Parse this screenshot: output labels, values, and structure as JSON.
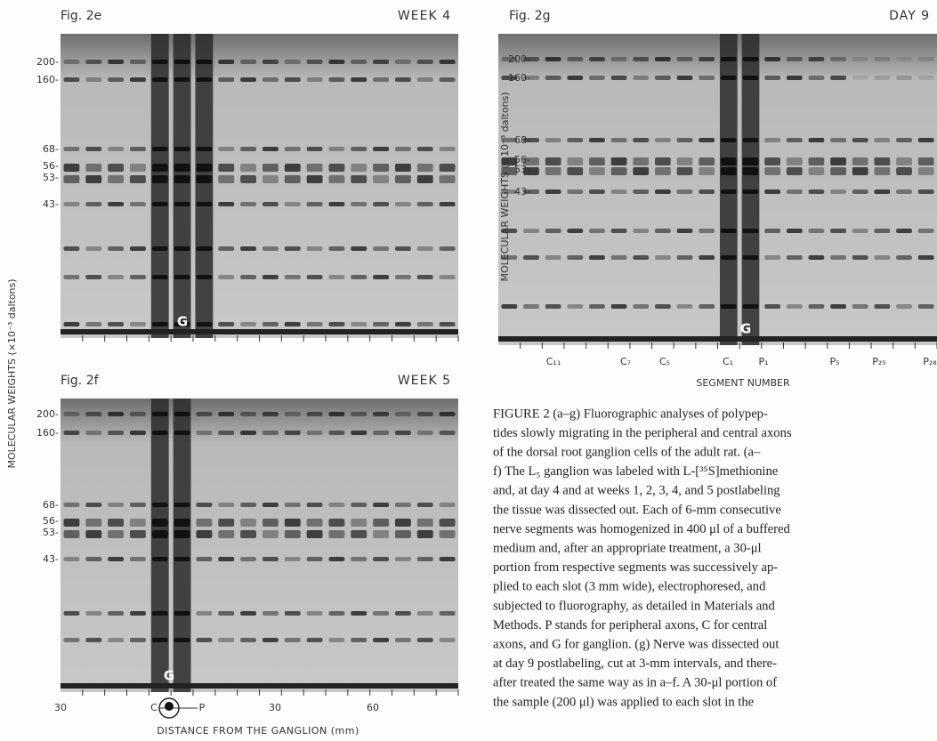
{
  "panels": [
    {
      "label": "Fig. 2e",
      "condition": "WEEK 4",
      "markers": [
        "200-",
        "160-",
        "68-",
        "56-",
        "53-",
        "43-"
      ],
      "ganglion": "G"
    },
    {
      "label": "Fig. 2f",
      "condition": "WEEK 5",
      "markers": [
        "200-",
        "160-",
        "68-",
        "56-",
        "53-",
        "43-"
      ],
      "ganglion": "G",
      "x_labels": [
        "30",
        "C",
        "P",
        "30",
        "60"
      ],
      "x_title": "DISTANCE FROM THE GANGLION (mm)"
    },
    {
      "label": "Fig. 2g",
      "condition": "DAY 9",
      "markers": [
        "200-",
        "160-",
        "68-",
        "56-",
        "53-",
        "43-"
      ],
      "ganglion": "G",
      "y_title": "MOLECULAR WEIGHTS (×10⁻³ daltons)",
      "x_labels": [
        "C₁₁",
        "C₇",
        "C₅",
        "C₁",
        "P₁",
        "P₅",
        "P₂₅",
        "P₂₈"
      ],
      "x_title": "SEGMENT NUMBER"
    }
  ],
  "y_title": "MOLECULAR WEIGHTS (×10⁻³ daltons)",
  "caption": [
    "FIGURE 2  (a–g) Fluorographic analyses of polypep-",
    "tides slowly migrating in the peripheral and central axons",
    "of the dorsal root ganglion cells of the adult rat. (a–",
    "f) The L₅ ganglion was labeled with L-[³⁵S]methionine",
    "and, at day 4 and at weeks 1, 2, 3, 4, and 5 postlabeling",
    "the tissue was dissected out. Each of 6-mm consecutive",
    "nerve segments was homogenized in 400 μl of a buffered",
    "medium and, after an appropriate treatment, a 30-μl",
    "portion from respective segments was successively ap-",
    "plied to each slot (3 mm wide), electrophoresed, and",
    "subjected to fluorography, as detailed in Materials and",
    "Methods. P stands for peripheral axons, C for central",
    "axons, and G for ganglion. (g) Nerve was dissected out",
    "at day 9 postlabeling, cut at 3-mm intervals, and there-",
    "after treated the same way as in a–f. A 30-μl portion of",
    "the sample (200 μl) was applied to each slot in the"
  ]
}
